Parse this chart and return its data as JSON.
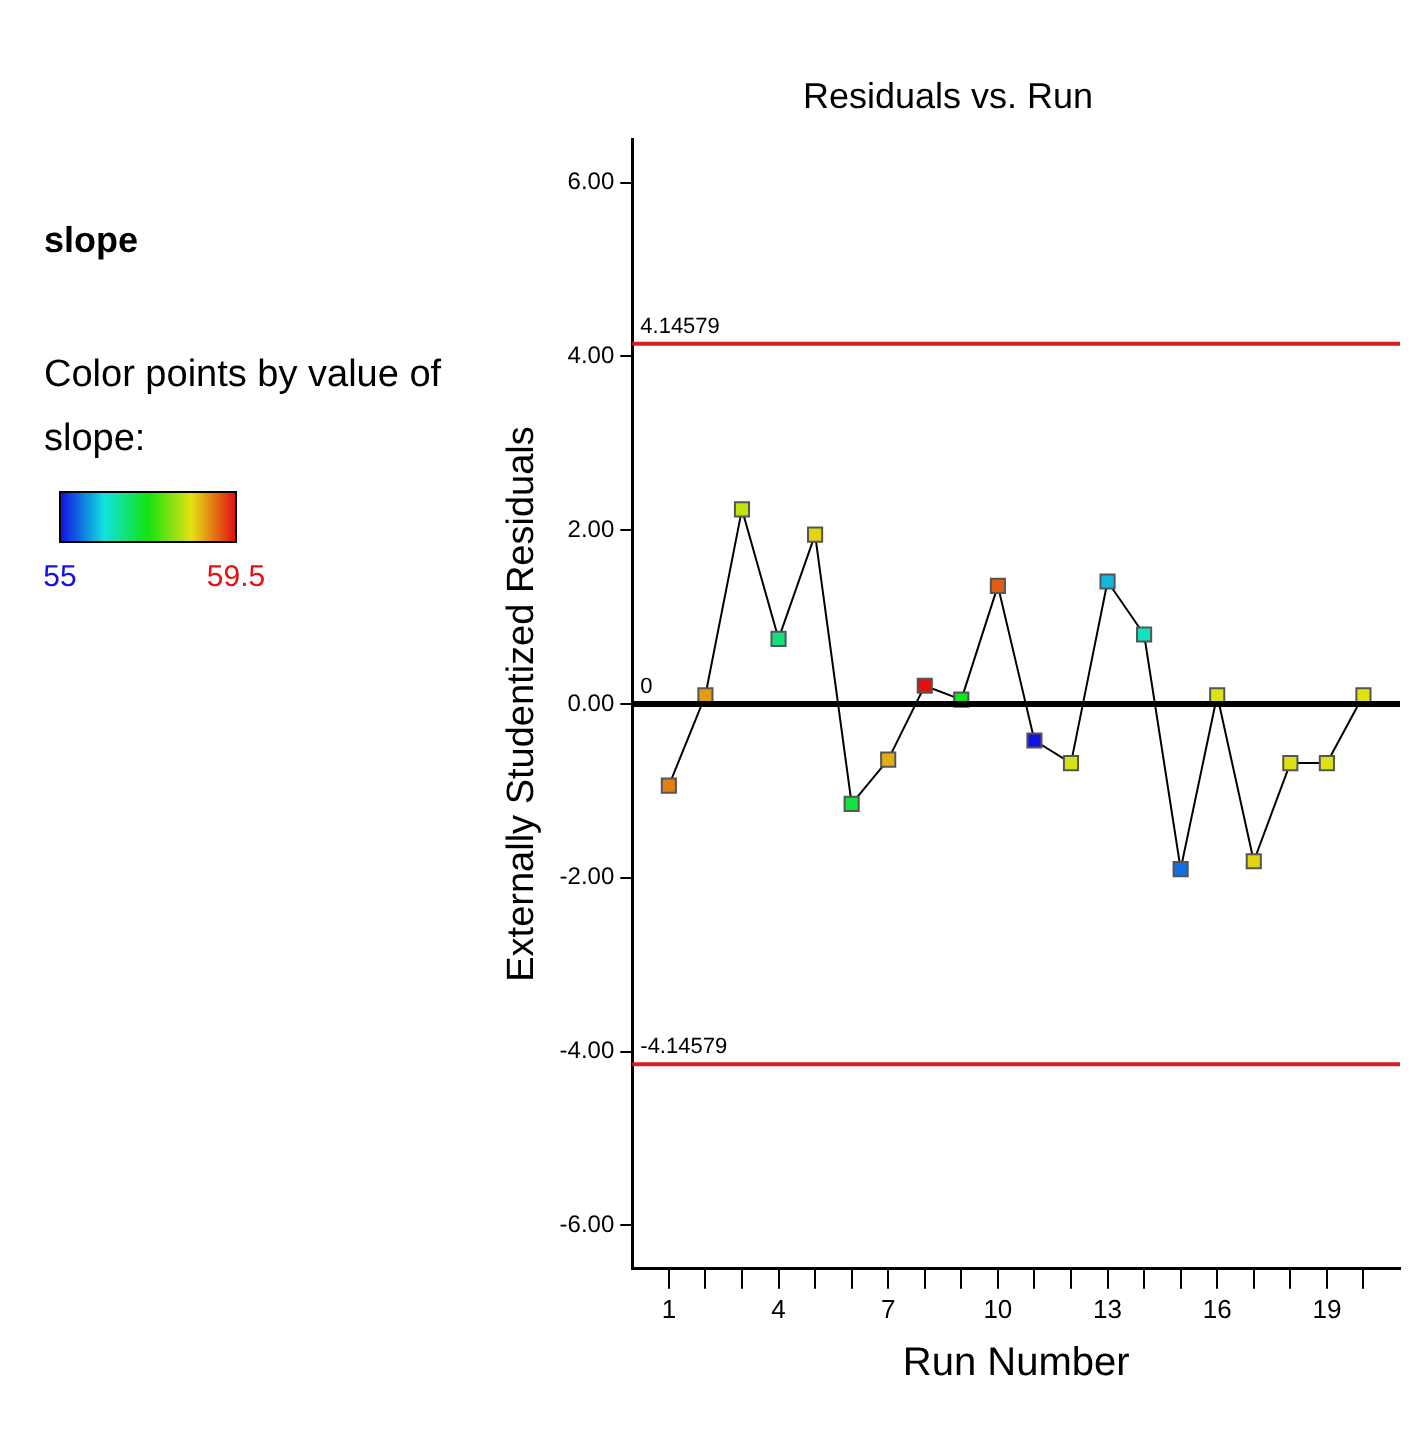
{
  "chart_data": {
    "type": "line",
    "title": "Residuals vs. Run",
    "subtitle": "slope",
    "clabel": "Color points by value of slope:",
    "xlabel": "Run Number",
    "ylabel": "Externally Studentized Residuals",
    "x": [
      1,
      2,
      3,
      4,
      5,
      6,
      7,
      8,
      9,
      10,
      11,
      12,
      13,
      14,
      15,
      16,
      17,
      18,
      19,
      20
    ],
    "values": [
      -0.94,
      0.1,
      2.24,
      0.75,
      1.95,
      -1.15,
      -0.64,
      0.21,
      0.05,
      1.36,
      -0.42,
      -0.68,
      1.41,
      0.8,
      -1.9,
      0.1,
      -1.81,
      -0.68,
      -0.68,
      0.1
    ],
    "colors": [
      "#e28112",
      "#e29d12",
      "#c2e212",
      "#12e278",
      "#e2d412",
      "#12e240",
      "#e2af12",
      "#e21212",
      "#12e224",
      "#e25c12",
      "#1212e2",
      "#d4e212",
      "#12b8e2",
      "#12e2c2",
      "#126ee2",
      "#dde212",
      "#e2d412",
      "#dde212",
      "#dde212",
      "#dde212"
    ],
    "color": "#000000",
    "marker": "square",
    "clim": [
      55,
      59.5
    ],
    "cticks": [
      55,
      59.5
    ],
    "xlim": [
      0,
      21
    ],
    "xticks": [
      1,
      {
        "value": 2,
        "label": null
      },
      {
        "value": 3,
        "label": null
      },
      4,
      {
        "value": 5,
        "label": null
      },
      {
        "value": 6,
        "label": null
      },
      7,
      {
        "value": 8,
        "label": null
      },
      {
        "value": 9,
        "label": null
      },
      10,
      {
        "value": 11,
        "label": null
      },
      {
        "value": 12,
        "label": null
      },
      13,
      {
        "value": 14,
        "label": null
      },
      {
        "value": 15,
        "label": null
      },
      16,
      {
        "value": 17,
        "label": null
      },
      {
        "value": 18,
        "label": null
      },
      19,
      {
        "value": 20,
        "label": null
      }
    ],
    "ylim": [
      -6.5,
      6.5
    ],
    "yticks": [
      {
        "value": -6,
        "label": "-6.00"
      },
      {
        "value": -4,
        "label": "-4.00"
      },
      {
        "value": -2,
        "label": "-2.00"
      },
      {
        "value": 0,
        "label": "0.00"
      },
      {
        "value": 2,
        "label": "2.00"
      },
      {
        "value": 4,
        "label": "4.00"
      },
      {
        "value": 6,
        "label": "6.00"
      }
    ],
    "ref_lines": [
      {
        "axis": "y",
        "value": 4.14579,
        "label": "4.14579",
        "color": "#d42020"
      },
      {
        "axis": "y",
        "value": 0,
        "label": "0",
        "color": "#000000"
      },
      {
        "axis": "y",
        "value": -4.14579,
        "label": "-4.14579",
        "color": "#d42020"
      }
    ],
    "grid": false,
    "legend": false,
    "line_style": "solid"
  }
}
